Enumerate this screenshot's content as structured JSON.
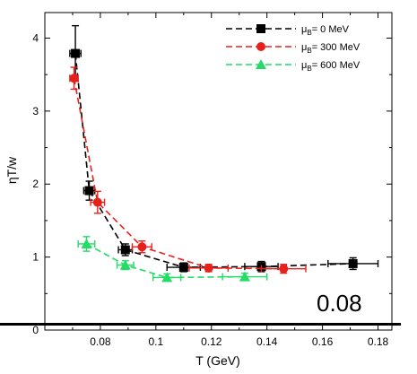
{
  "chart_data": {
    "type": "line",
    "xlabel": "T (GeV)",
    "ylabel": "ηT/w",
    "xlim": [
      0.06,
      0.185
    ],
    "ylim": [
      0,
      4.35
    ],
    "x_ticks": [
      "0.08",
      "0.1",
      "0.12",
      "0.14",
      "0.16",
      "0.18"
    ],
    "y_ticks": [
      "0",
      "1",
      "2",
      "3",
      "4"
    ],
    "annotation": "0.08",
    "horizontal_line_y": 0.08,
    "grid": false,
    "legend_position": "top-right",
    "series": [
      {
        "name": "μB= 0 MeV",
        "legend_main": "μ",
        "legend_sub": "B",
        "legend_rest": "= 0 MeV",
        "color": "#000000",
        "marker": "square",
        "points": [
          {
            "x": 0.071,
            "y": 3.79,
            "xerr": 0.002,
            "yerr": 0.38
          },
          {
            "x": 0.076,
            "y": 1.91,
            "xerr": 0.002,
            "yerr": 0.13
          },
          {
            "x": 0.089,
            "y": 1.1,
            "xerr": 0.0025,
            "yerr": 0.08
          },
          {
            "x": 0.11,
            "y": 0.86,
            "xerr": 0.006,
            "yerr": 0.06
          },
          {
            "x": 0.138,
            "y": 0.87,
            "xerr": 0.006,
            "yerr": 0.07
          },
          {
            "x": 0.171,
            "y": 0.91,
            "xerr": 0.009,
            "yerr": 0.08
          }
        ]
      },
      {
        "name": "μB= 300 MeV",
        "legend_main": "μ",
        "legend_sub": "B",
        "legend_rest": "= 300 MeV",
        "color": "#e8201c",
        "marker": "circle",
        "points": [
          {
            "x": 0.0705,
            "y": 3.45,
            "xerr": 0.0015,
            "yerr": 0.15
          },
          {
            "x": 0.079,
            "y": 1.75,
            "xerr": 0.0025,
            "yerr": 0.15
          },
          {
            "x": 0.095,
            "y": 1.14,
            "xerr": 0.0035,
            "yerr": 0.08
          },
          {
            "x": 0.119,
            "y": 0.85,
            "xerr": 0.007,
            "yerr": 0.05
          },
          {
            "x": 0.146,
            "y": 0.84,
            "xerr": 0.008,
            "yerr": 0.06
          }
        ]
      },
      {
        "name": "μB= 600 MeV",
        "legend_main": "μ",
        "legend_sub": "B",
        "legend_rest": "= 600 MeV",
        "color": "#22dc66",
        "marker": "triangle",
        "points": [
          {
            "x": 0.075,
            "y": 1.18,
            "xerr": 0.003,
            "yerr": 0.1
          },
          {
            "x": 0.089,
            "y": 0.89,
            "xerr": 0.003,
            "yerr": 0.06
          },
          {
            "x": 0.104,
            "y": 0.72,
            "xerr": 0.005,
            "yerr": 0.05
          },
          {
            "x": 0.132,
            "y": 0.73,
            "xerr": 0.008,
            "yerr": 0.05
          }
        ]
      }
    ]
  }
}
